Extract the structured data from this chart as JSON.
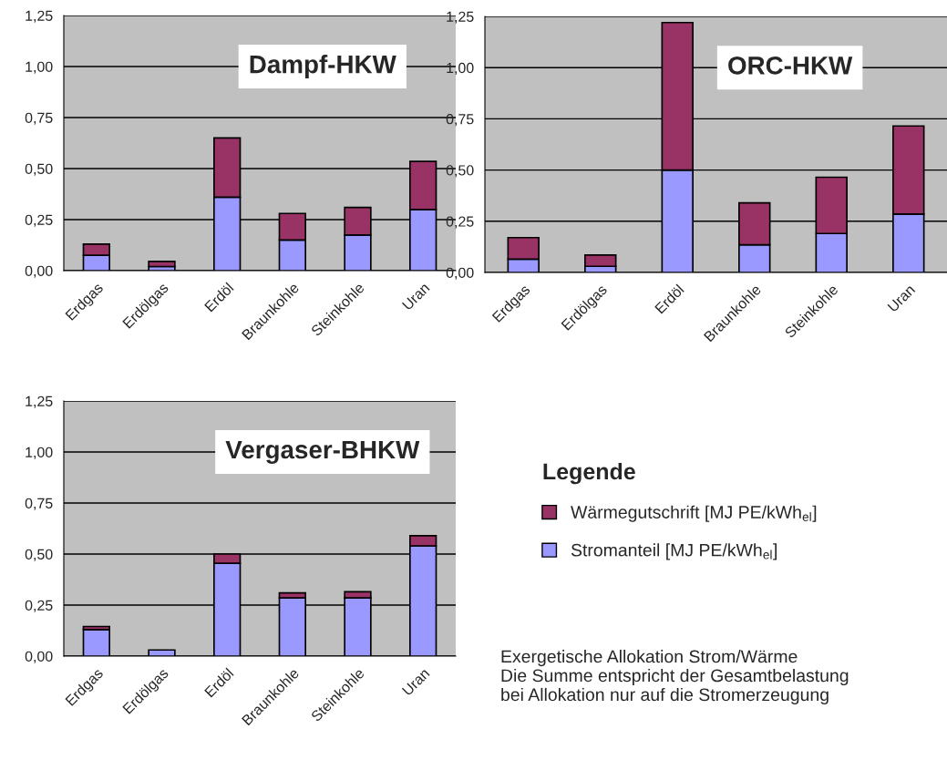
{
  "chart_data": [
    {
      "type": "bar",
      "stacked": true,
      "title": "Dampf-HKW",
      "categories": [
        "Erdgas",
        "Erdölgas",
        "Erdöl",
        "Braunkohle",
        "Steinkohle",
        "Uran"
      ],
      "series": [
        {
          "color": "#9999ff",
          "values": [
            0.075,
            0.02,
            0.36,
            0.15,
            0.175,
            0.3
          ]
        },
        {
          "color": "#993366",
          "values": [
            0.055,
            0.025,
            0.29,
            0.13,
            0.135,
            0.235
          ]
        }
      ],
      "ylim": [
        0,
        1.25
      ],
      "yticks": [
        {
          "value": 0,
          "label": "0,00"
        },
        {
          "value": 0.25,
          "label": "0,25"
        },
        {
          "value": 0.5,
          "label": "0,50"
        },
        {
          "value": 0.75,
          "label": "0,75"
        },
        {
          "value": 1,
          "label": "1,00"
        },
        {
          "value": 1.25,
          "label": "1,25"
        }
      ],
      "grid": "y",
      "legend": false
    },
    {
      "type": "bar",
      "stacked": true,
      "title": "ORC-HKW",
      "categories": [
        "Erdgas",
        "Erdölgas",
        "Erdöl",
        "Braunkohle",
        "Steinkohle",
        "Uran"
      ],
      "series": [
        {
          "color": "#9999ff",
          "values": [
            0.065,
            0.03,
            0.5,
            0.135,
            0.19,
            0.285
          ]
        },
        {
          "color": "#993366",
          "values": [
            0.105,
            0.055,
            0.72,
            0.205,
            0.275,
            0.43
          ]
        }
      ],
      "ylim": [
        0,
        1.25
      ],
      "yticks": [
        {
          "value": 0,
          "label": "0,00"
        },
        {
          "value": 0.25,
          "label": "0,25"
        },
        {
          "value": 0.5,
          "label": "0,50"
        },
        {
          "value": 0.75,
          "label": "0,75"
        },
        {
          "value": 1,
          "label": "1,00"
        },
        {
          "value": 1.25,
          "label": "1,25"
        }
      ],
      "grid": "y",
      "legend": false
    },
    {
      "type": "bar",
      "stacked": true,
      "title": "Vergaser-BHKW",
      "categories": [
        "Erdgas",
        "Erdölgas",
        "Erdöl",
        "Braunkohle",
        "Steinkohle",
        "Uran"
      ],
      "series": [
        {
          "name": "Stromanteil [MJ PE/kWh$_{el}$]",
          "color": "#9999ff",
          "values": [
            0.13,
            0.03,
            0.455,
            0.285,
            0.285,
            0.54
          ]
        },
        {
          "name": "Wärmegutschrift [MJ PE/kWh$_{el}$]",
          "color": "#993366",
          "values": [
            0.015,
            null,
            0.045,
            0.025,
            0.03,
            0.05
          ]
        }
      ],
      "ylim": [
        0,
        1.25
      ],
      "yticks": [
        {
          "value": 0,
          "label": "0,00"
        },
        {
          "value": 0.25,
          "label": "0,25"
        },
        {
          "value": 0.5,
          "label": "0,50"
        },
        {
          "value": 0.75,
          "label": "0,75"
        },
        {
          "value": 1,
          "label": "1,00"
        },
        {
          "value": 1.25,
          "label": "1,25"
        }
      ],
      "grid": "y",
      "legend": "right",
      "legend_title": "Legende",
      "annotations": [
        "Exergetische Allokation Strom/Wärme\nDie Summe entspricht der Gesamtbelastung\nbei Allokation nur auf die Stromerzeugung"
      ]
    }
  ]
}
